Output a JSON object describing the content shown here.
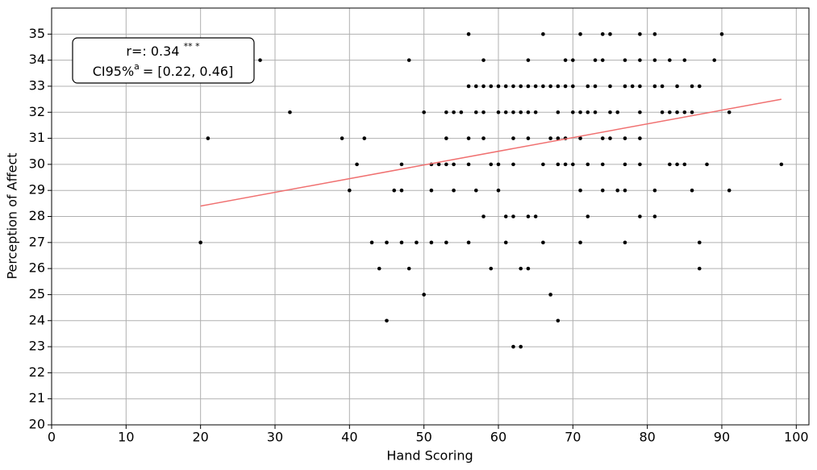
{
  "chart_data": {
    "type": "scatter",
    "x_label": "Hand Scoring",
    "y_label": "Perception of Affect",
    "annotation": {
      "r_text": "r=: 0.34",
      "r_sup": "** *",
      "ci_text": "CI95%",
      "ci_sup": "a",
      "ci_rest": "= [0.22, 0.46]"
    },
    "xlim": [
      0,
      101.7
    ],
    "ylim": [
      20,
      36
    ],
    "xticks": [
      0,
      10,
      20,
      30,
      40,
      50,
      60,
      70,
      80,
      90,
      100
    ],
    "yticks": [
      20,
      21,
      22,
      23,
      24,
      25,
      26,
      27,
      28,
      29,
      30,
      31,
      32,
      33,
      34,
      35
    ],
    "grid": true,
    "series": [
      {
        "color": "#000000",
        "x": [
          56,
          66,
          71,
          74,
          75,
          79,
          81,
          90,
          28,
          48,
          58,
          64,
          69,
          70,
          73,
          74,
          77,
          79,
          81,
          83,
          85,
          89,
          56,
          57,
          58,
          59,
          60,
          61,
          62,
          63,
          64,
          65,
          66,
          67,
          68,
          69,
          70,
          72,
          73,
          75,
          77,
          78,
          79,
          81,
          82,
          84,
          86,
          87,
          32,
          50,
          53,
          54,
          55,
          57,
          58,
          60,
          61,
          62,
          63,
          64,
          65,
          68,
          70,
          71,
          72,
          73,
          75,
          76,
          79,
          82,
          83,
          84,
          85,
          86,
          91,
          21,
          39,
          42,
          53,
          56,
          58,
          62,
          64,
          67,
          68,
          69,
          71,
          74,
          75,
          77,
          79,
          41,
          47,
          51,
          52,
          53,
          54,
          56,
          59,
          60,
          62,
          66,
          68,
          69,
          70,
          72,
          74,
          77,
          79,
          83,
          84,
          85,
          88,
          98,
          40,
          46,
          47,
          51,
          54,
          57,
          60,
          71,
          74,
          76,
          77,
          81,
          86,
          91,
          58,
          61,
          62,
          64,
          65,
          72,
          79,
          81,
          20,
          43,
          45,
          47,
          49,
          51,
          53,
          56,
          61,
          66,
          71,
          77,
          87,
          44,
          48,
          59,
          63,
          64,
          87,
          50,
          67,
          45,
          68,
          62,
          63
        ],
        "values": [
          35,
          35,
          35,
          35,
          35,
          35,
          35,
          35,
          34,
          34,
          34,
          34,
          34,
          34,
          34,
          34,
          34,
          34,
          34,
          34,
          34,
          34,
          33,
          33,
          33,
          33,
          33,
          33,
          33,
          33,
          33,
          33,
          33,
          33,
          33,
          33,
          33,
          33,
          33,
          33,
          33,
          33,
          33,
          33,
          33,
          33,
          33,
          33,
          32,
          32,
          32,
          32,
          32,
          32,
          32,
          32,
          32,
          32,
          32,
          32,
          32,
          32,
          32,
          32,
          32,
          32,
          32,
          32,
          32,
          32,
          32,
          32,
          32,
          32,
          32,
          31,
          31,
          31,
          31,
          31,
          31,
          31,
          31,
          31,
          31,
          31,
          31,
          31,
          31,
          31,
          31,
          30,
          30,
          30,
          30,
          30,
          30,
          30,
          30,
          30,
          30,
          30,
          30,
          30,
          30,
          30,
          30,
          30,
          30,
          30,
          30,
          30,
          30,
          30,
          29,
          29,
          29,
          29,
          29,
          29,
          29,
          29,
          29,
          29,
          29,
          29,
          29,
          29,
          28,
          28,
          28,
          28,
          28,
          28,
          28,
          28,
          27,
          27,
          27,
          27,
          27,
          27,
          27,
          27,
          27,
          27,
          27,
          27,
          27,
          26,
          26,
          26,
          26,
          26,
          26,
          25,
          25,
          24,
          24,
          23,
          23
        ]
      },
      {
        "type": "line",
        "color": "#f07070",
        "x": [
          20,
          98
        ],
        "values": [
          28.4,
          32.5
        ]
      }
    ]
  }
}
